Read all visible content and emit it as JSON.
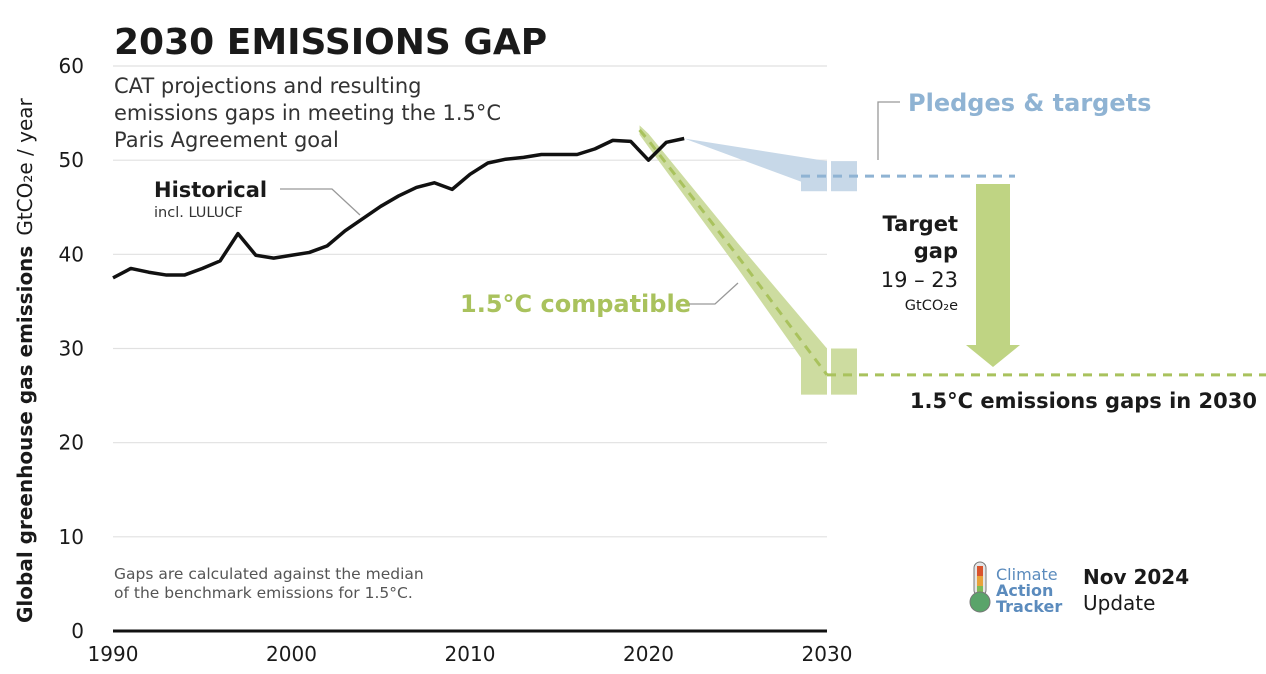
{
  "title": "2030 EMISSIONS GAP",
  "subtitle": [
    "CAT projections and resulting",
    "emissions gaps in meeting the 1.5°C",
    "Paris Agreement goal"
  ],
  "ylabel": "Global greenhouse gas emissions",
  "yunit": "GtCO₂e / year",
  "note": [
    "Gaps are calculated against the median",
    "of the benchmark emissions for 1.5°C."
  ],
  "labels": {
    "historical": "Historical",
    "historical_sub": "incl. LULUCF",
    "pledges": "Pledges & targets",
    "compatible": "1.5°C compatible",
    "target_gap_1": "Target",
    "target_gap_2": "gap",
    "target_gap_range": "19 – 23",
    "target_gap_unit": "GtCO₂e",
    "gap_2030": "1.5°C emissions gaps in 2030"
  },
  "logo": {
    "text": [
      "Climate",
      "Action",
      "Tracker"
    ],
    "date": "Nov 2024",
    "update": "Update"
  },
  "colors": {
    "historical": "#111111",
    "pledges": "#8fb3d3",
    "pledges_band": "#c7d8e8",
    "compatible": "#a9c25d",
    "compatible_band": "#cddca0",
    "axis": "#111111",
    "grid": "#e1e1e1"
  },
  "chart_data": {
    "type": "line",
    "xlim": [
      1990,
      2030
    ],
    "ylim": [
      0,
      60
    ],
    "xticks": [
      1990,
      2000,
      2010,
      2020,
      2030
    ],
    "yticks": [
      0,
      10,
      20,
      30,
      40,
      50,
      60
    ],
    "grid": true,
    "series": [
      {
        "name": "Historical",
        "x": [
          1990,
          1991,
          1992,
          1993,
          1994,
          1995,
          1996,
          1997,
          1998,
          1999,
          2000,
          2001,
          2002,
          2003,
          2004,
          2005,
          2006,
          2007,
          2008,
          2009,
          2010,
          2011,
          2012,
          2013,
          2014,
          2015,
          2016,
          2017,
          2018,
          2019,
          2020,
          2021,
          2022
        ],
        "y": [
          37.5,
          38.5,
          38.1,
          37.8,
          37.8,
          38.5,
          39.3,
          42.2,
          39.9,
          39.6,
          39.9,
          40.2,
          40.9,
          42.5,
          43.8,
          45.1,
          46.2,
          47.1,
          47.6,
          46.9,
          48.5,
          49.7,
          50.1,
          50.3,
          50.6,
          50.6,
          50.6,
          51.2,
          52.1,
          52.0,
          50.0,
          51.9,
          52.3
        ]
      },
      {
        "name": "Pledges & targets",
        "x": [
          2022,
          2030
        ],
        "upper": [
          52.3,
          49.9
        ],
        "lower": [
          52.3,
          46.7
        ],
        "median": 48.3
      },
      {
        "name": "1.5°C compatible",
        "x": [
          2019.5,
          2020,
          2025,
          2030
        ],
        "upper": [
          53.7,
          52.8,
          41.2,
          30.0
        ],
        "lower": [
          52.7,
          51.4,
          38.5,
          25.1
        ],
        "median": [
          53.2,
          52.1,
          39.8,
          27.2
        ]
      }
    ],
    "target_gap": {
      "min": 19,
      "max": 23,
      "unit": "GtCO₂e"
    }
  }
}
